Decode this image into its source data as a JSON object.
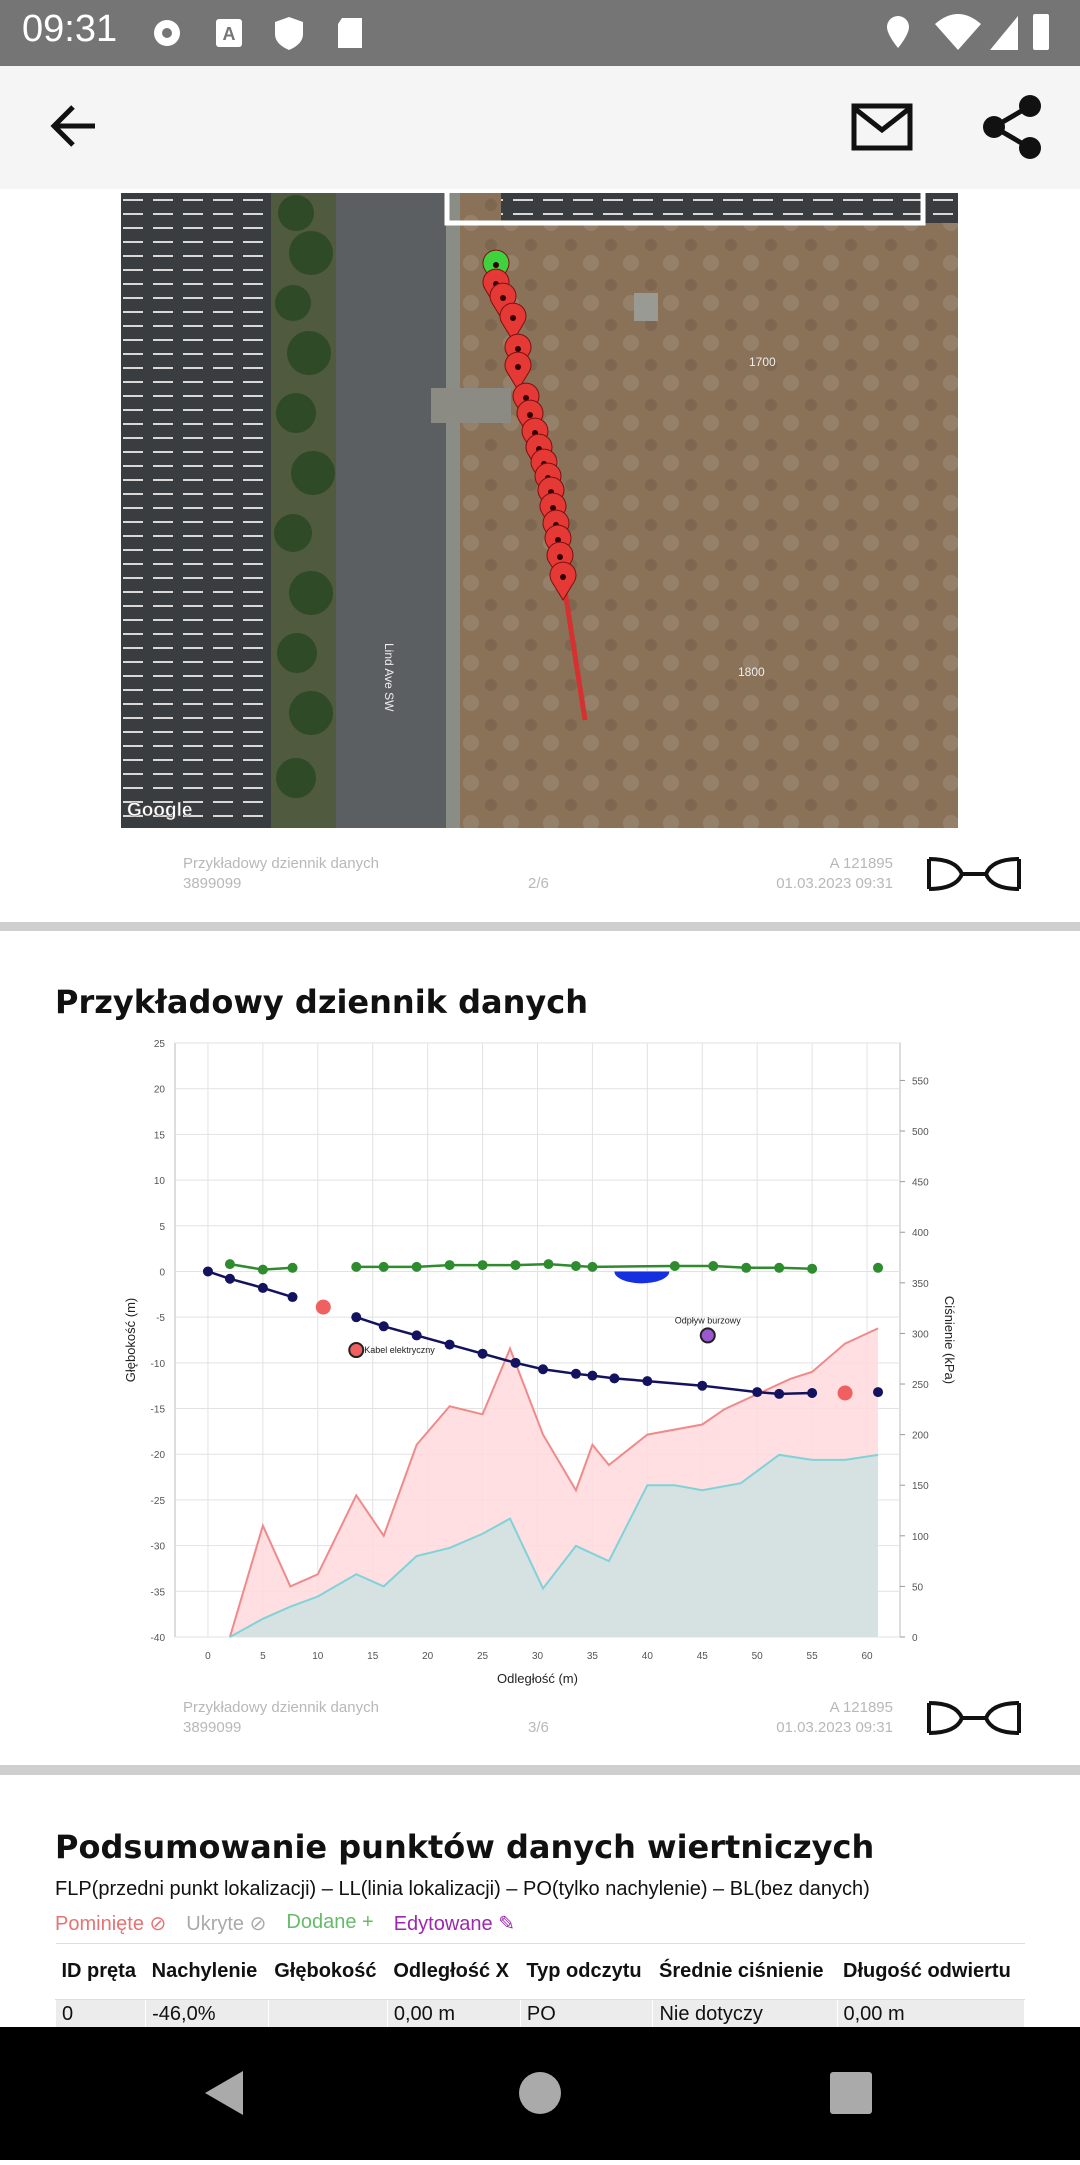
{
  "status_bar": {
    "time": "09:31"
  },
  "map": {
    "google": "Google",
    "street": "Lind Ave SW",
    "lot_a": "1700",
    "lot_b": "1800"
  },
  "footers": [
    {
      "title": "Przykładowy dziennik danych",
      "job": "3899099",
      "page": "2/6",
      "serial": "A 121895",
      "date": "01.03.2023 09:31"
    },
    {
      "title": "Przykładowy dziennik danych",
      "job": "3899099",
      "page": "3/6",
      "serial": "A 121895",
      "date": "01.03.2023 09:31"
    }
  ],
  "chart": {
    "type": "line",
    "title": "Przykładowy dziennik danych",
    "xlabel": "Odległość (m)",
    "ylabel": "Głębokość (m)",
    "y2label": "Ciśnienie (kPa)",
    "xlim": [
      -3,
      63
    ],
    "xticks": [
      0,
      5,
      10,
      15,
      20,
      25,
      30,
      35,
      40,
      45,
      50,
      55,
      60
    ],
    "ylim": [
      -40,
      25
    ],
    "yticks": [
      -40,
      -35,
      -30,
      -25,
      -20,
      -15,
      -10,
      -5,
      0,
      5,
      10,
      15,
      20,
      25
    ],
    "y2lim": [
      0,
      587
    ],
    "y2ticks": [
      0,
      50,
      100,
      150,
      200,
      250,
      300,
      350,
      400,
      450,
      500,
      550
    ],
    "grid": true,
    "series": [
      {
        "kind": "area",
        "axis": "y2",
        "color": "#f08a8a",
        "fill": "#ffd9dc",
        "x": [
          2,
          5,
          7.5,
          10,
          13.5,
          16,
          19,
          22,
          25,
          27.5,
          30.5,
          33.5,
          35,
          36.5,
          40,
          45,
          47,
          53,
          55,
          58,
          61
        ],
        "values": [
          0,
          110,
          50,
          62,
          140,
          100,
          190,
          228,
          220,
          285,
          200,
          145,
          190,
          170,
          200,
          210,
          225,
          255,
          262,
          290,
          305
        ]
      },
      {
        "kind": "area",
        "axis": "y2",
        "color": "#7fd3d8",
        "fill": "#cfe2e2",
        "x": [
          2,
          5,
          7.5,
          10,
          13.5,
          16,
          19,
          22,
          25,
          27.5,
          30.5,
          33.5,
          36.5,
          40,
          42.5,
          45,
          48.5,
          52,
          55,
          58,
          61
        ],
        "values": [
          0,
          18,
          30,
          40,
          62,
          50,
          80,
          88,
          102,
          117,
          48,
          90,
          75,
          150,
          150,
          145,
          152,
          180,
          175,
          175,
          180
        ]
      },
      {
        "kind": "line",
        "color": "#2e8b2e",
        "x": [
          2,
          5,
          7.7,
          10.5,
          13.5,
          16,
          19,
          22,
          25,
          28,
          31,
          33.5,
          35,
          42.5,
          46,
          49,
          52,
          55,
          58,
          61
        ],
        "values": [
          0.8,
          0.2,
          0.4,
          null,
          0.5,
          0.5,
          0.5,
          0.7,
          0.7,
          0.7,
          0.8,
          0.6,
          0.5,
          0.6,
          0.6,
          0.4,
          0.4,
          0.3,
          null,
          0.4
        ]
      },
      {
        "kind": "line",
        "color": "#12125e",
        "x": [
          0,
          2,
          5,
          7.7,
          10.5,
          13.5,
          16,
          19,
          22,
          25,
          28,
          30.5,
          33.5,
          35,
          37,
          40,
          45,
          50,
          52,
          55,
          58,
          61
        ],
        "values": [
          0,
          -0.8,
          -1.8,
          -2.8,
          null,
          -5,
          -6,
          -7,
          -8,
          -9,
          -10,
          -10.7,
          -11.2,
          -11.4,
          -11.7,
          -12,
          -12.5,
          -13.2,
          -13.4,
          -13.3,
          null,
          -13.2
        ]
      }
    ],
    "water": {
      "x": [
        37,
        42
      ],
      "depth": -1.3,
      "color": "#1430e0"
    },
    "markers": [
      {
        "x": 10.5,
        "y": -3.9,
        "color": "#f06060"
      },
      {
        "x": 58,
        "y": -13.3,
        "color": "#f06060"
      },
      {
        "x": 13.5,
        "y": -8.6,
        "color": "#f06060",
        "label": "Kabel elektryczny"
      },
      {
        "x": 45.5,
        "y": -7,
        "color": "#9b59d0",
        "label": "Odpływ burzowy"
      }
    ]
  },
  "summary": {
    "title": "Podsumowanie punktów danych wiertniczych",
    "abbreviations": "FLP(przedni punkt lokalizacji) – LL(linia lokalizacji) – PO(tylko nachylenie) – BL(bez danych)",
    "legend": [
      "Pominięte",
      "Ukryte",
      "Dodane",
      "Edytowane"
    ],
    "table": {
      "headers": [
        "ID pręta",
        "Nachylenie",
        "Głębokość",
        "Odległość X",
        "Typ odczytu",
        "Średnie ciśnienie",
        "Długość odwiertu"
      ],
      "rows": [
        [
          "0",
          "-46,0%",
          null,
          "0,00 m",
          "PO",
          "Nie dotyczy",
          "0,00 m"
        ]
      ]
    }
  }
}
